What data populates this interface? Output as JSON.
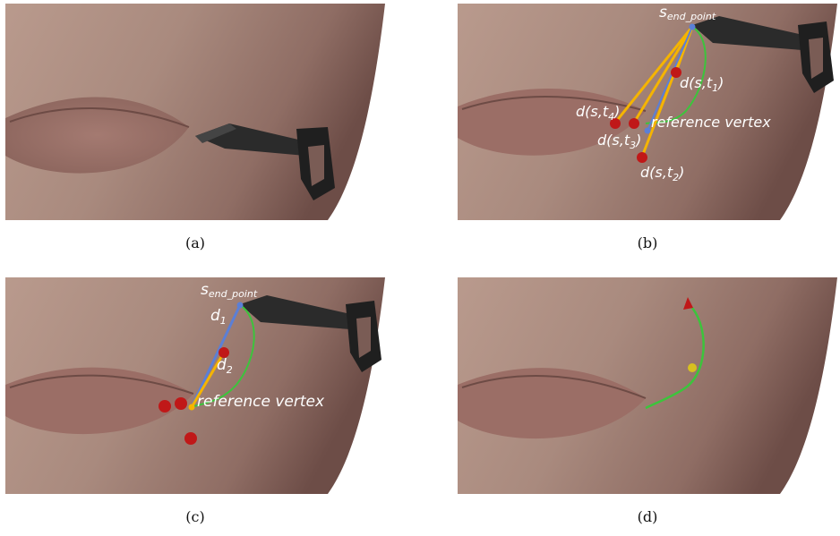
{
  "figure": {
    "panels": [
      {
        "id": "a",
        "caption": "(a)"
      },
      {
        "id": "b",
        "caption": "(b)",
        "labels": {
          "s_base": "s",
          "s_sub": "end_point",
          "d1_pre": "d(s,t",
          "d1_sub": "1",
          "d1_post": ")",
          "d4_pre": "d(s,t",
          "d4_sub": "4",
          "d4_post": ")",
          "d3_pre": "d(s,t",
          "d3_sub": "3",
          "d3_post": ")",
          "d2_pre": "d(s,t",
          "d2_sub": "2",
          "d2_post": ")",
          "ref": "reference vertex"
        }
      },
      {
        "id": "c",
        "caption": "(c)",
        "labels": {
          "s_base": "s",
          "s_sub": "end_point",
          "d1_base": "d",
          "d1_sub": "1",
          "d2_base": "d",
          "d2_sub": "2",
          "ref": "reference vertex"
        }
      },
      {
        "id": "d",
        "caption": "(d)"
      }
    ],
    "colors": {
      "skin_light": "#b29185",
      "skin_dark": "#6d4a44",
      "lip": "#9b6e66",
      "tool": "#2b2b2b",
      "orange_line": "#f5b400",
      "blue_line": "#5b7fd6",
      "green_curve": "#3cc43c",
      "red_sphere": "#c01818"
    }
  }
}
